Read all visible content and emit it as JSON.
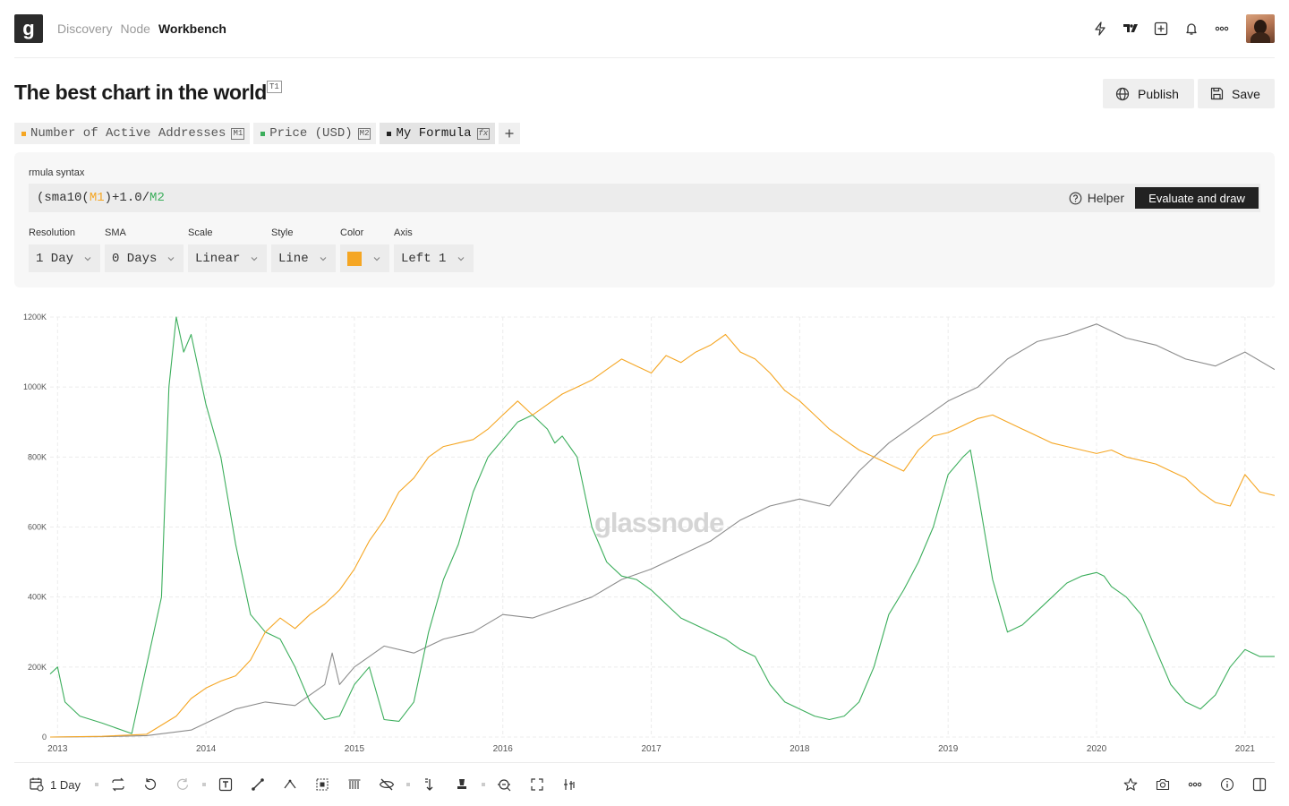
{
  "nav": {
    "logo": "g",
    "links": [
      {
        "label": "Discovery",
        "active": false
      },
      {
        "label": "Node",
        "active": false
      },
      {
        "label": "Workbench",
        "active": true
      }
    ],
    "icons": [
      "lightning-icon",
      "tradingview-icon",
      "add-square-icon",
      "bell-icon",
      "more-icon"
    ]
  },
  "page": {
    "title": "The best chart in the world",
    "title_badge": "T1",
    "publish_label": "Publish",
    "save_label": "Save"
  },
  "tabs": [
    {
      "label": "Number of Active Addresses",
      "code": "M1",
      "color": "#f5a623",
      "active": false
    },
    {
      "label": "Price (USD)",
      "code": "M2",
      "color": "#3cae5c",
      "active": false
    },
    {
      "label": "My Formula",
      "code": "fx",
      "color": "#222222",
      "active": true
    }
  ],
  "formula": {
    "label": "rmula syntax",
    "text_prefix": "(sma10(",
    "m1": "M1",
    "text_mid": ")+1.0/",
    "m2": "M2",
    "helper_label": "Helper",
    "evaluate_label": "Evaluate and draw"
  },
  "controls": {
    "resolution": {
      "label": "Resolution",
      "value": "1 Day"
    },
    "sma": {
      "label": "SMA",
      "value": "0 Days"
    },
    "scale": {
      "label": "Scale",
      "value": "Linear"
    },
    "style": {
      "label": "Style",
      "value": "Line"
    },
    "color": {
      "label": "Color",
      "value": "#f5a623"
    },
    "axis": {
      "label": "Axis",
      "value": "Left 1"
    }
  },
  "watermark": "glassnode",
  "chart_data": {
    "type": "line",
    "yticks": [
      "0",
      "200K",
      "400K",
      "600K",
      "800K",
      "1000K",
      "1200K"
    ],
    "ylim": [
      0,
      1200000
    ],
    "xticks": [
      "2013",
      "2014",
      "2015",
      "2016",
      "2017",
      "2018",
      "2019",
      "2020",
      "2021"
    ],
    "xlim": [
      2012.95,
      2021.2
    ],
    "grid": true,
    "series": [
      {
        "color": "#f5a623",
        "x": [
          2012.95,
          2013.3,
          2013.6,
          2013.8,
          2013.9,
          2014.0,
          2014.1,
          2014.2,
          2014.3,
          2014.4,
          2014.5,
          2014.6,
          2014.7,
          2014.8,
          2014.9,
          2015.0,
          2015.1,
          2015.2,
          2015.3,
          2015.4,
          2015.5,
          2015.6,
          2015.7,
          2015.8,
          2015.9,
          2016.0,
          2016.1,
          2016.2,
          2016.3,
          2016.4,
          2016.5,
          2016.6,
          2016.7,
          2016.8,
          2016.9,
          2017.0,
          2017.1,
          2017.2,
          2017.3,
          2017.4,
          2017.5,
          2017.6,
          2017.7,
          2017.8,
          2017.9,
          2018.0,
          2018.1,
          2018.2,
          2018.3,
          2018.4,
          2018.5,
          2018.6,
          2018.7,
          2018.8,
          2018.9,
          2019.0,
          2019.1,
          2019.2,
          2019.3,
          2019.4,
          2019.5,
          2019.6,
          2019.7,
          2019.8,
          2019.9,
          2020.0,
          2020.1,
          2020.2,
          2020.3,
          2020.4,
          2020.5,
          2020.6,
          2020.7,
          2020.8,
          2020.9,
          2021.0,
          2021.1,
          2021.2
        ],
        "values": [
          0,
          2000,
          8000,
          60000,
          110000,
          140000,
          160000,
          175000,
          220000,
          300000,
          340000,
          310000,
          350000,
          380000,
          420000,
          480000,
          560000,
          620000,
          700000,
          740000,
          800000,
          830000,
          840000,
          850000,
          880000,
          920000,
          960000,
          920000,
          950000,
          980000,
          1000000,
          1020000,
          1050000,
          1080000,
          1060000,
          1040000,
          1090000,
          1070000,
          1100000,
          1120000,
          1150000,
          1100000,
          1080000,
          1040000,
          990000,
          960000,
          920000,
          880000,
          850000,
          820000,
          800000,
          780000,
          760000,
          820000,
          860000,
          870000,
          890000,
          910000,
          920000,
          900000,
          880000,
          860000,
          840000,
          830000,
          820000,
          810000,
          820000,
          800000,
          790000,
          780000,
          760000,
          740000,
          700000,
          670000,
          660000,
          750000,
          700000,
          690000
        ]
      },
      {
        "color": "#3cae5c",
        "x": [
          2012.95,
          2013.0,
          2013.05,
          2013.15,
          2013.3,
          2013.5,
          2013.7,
          2013.75,
          2013.8,
          2013.85,
          2013.9,
          2014.0,
          2014.1,
          2014.2,
          2014.3,
          2014.4,
          2014.5,
          2014.6,
          2014.7,
          2014.8,
          2014.9,
          2015.0,
          2015.1,
          2015.2,
          2015.3,
          2015.4,
          2015.5,
          2015.6,
          2015.7,
          2015.8,
          2015.9,
          2016.0,
          2016.1,
          2016.2,
          2016.3,
          2016.35,
          2016.4,
          2016.5,
          2016.6,
          2016.7,
          2016.8,
          2016.9,
          2017.0,
          2017.1,
          2017.2,
          2017.3,
          2017.4,
          2017.5,
          2017.6,
          2017.7,
          2017.8,
          2017.9,
          2018.0,
          2018.1,
          2018.2,
          2018.3,
          2018.4,
          2018.5,
          2018.6,
          2018.7,
          2018.8,
          2018.9,
          2019.0,
          2019.1,
          2019.15,
          2019.2,
          2019.3,
          2019.4,
          2019.5,
          2019.6,
          2019.7,
          2019.8,
          2019.9,
          2020.0,
          2020.05,
          2020.1,
          2020.2,
          2020.3,
          2020.4,
          2020.5,
          2020.6,
          2020.7,
          2020.8,
          2020.9,
          2021.0,
          2021.1,
          2021.2
        ],
        "values": [
          180000,
          200000,
          100000,
          60000,
          40000,
          10000,
          400000,
          1000000,
          1200000,
          1100000,
          1150000,
          950000,
          800000,
          550000,
          350000,
          300000,
          280000,
          200000,
          100000,
          50000,
          60000,
          150000,
          200000,
          50000,
          45000,
          100000,
          300000,
          450000,
          550000,
          700000,
          800000,
          850000,
          900000,
          920000,
          880000,
          840000,
          860000,
          800000,
          600000,
          500000,
          460000,
          450000,
          420000,
          380000,
          340000,
          320000,
          300000,
          280000,
          250000,
          230000,
          150000,
          100000,
          80000,
          60000,
          50000,
          60000,
          100000,
          200000,
          350000,
          420000,
          500000,
          600000,
          750000,
          800000,
          820000,
          700000,
          450000,
          300000,
          320000,
          360000,
          400000,
          440000,
          460000,
          470000,
          460000,
          430000,
          400000,
          350000,
          250000,
          150000,
          100000,
          80000,
          120000,
          200000,
          250000,
          230000,
          230000
        ]
      },
      {
        "color": "#8c8c8c",
        "x": [
          2012.95,
          2013.3,
          2013.6,
          2013.9,
          2014.0,
          2014.2,
          2014.4,
          2014.6,
          2014.8,
          2014.85,
          2014.9,
          2015.0,
          2015.2,
          2015.4,
          2015.6,
          2015.8,
          2016.0,
          2016.2,
          2016.4,
          2016.6,
          2016.8,
          2017.0,
          2017.2,
          2017.4,
          2017.6,
          2017.8,
          2018.0,
          2018.2,
          2018.4,
          2018.6,
          2018.8,
          2019.0,
          2019.2,
          2019.4,
          2019.6,
          2019.8,
          2020.0,
          2020.2,
          2020.4,
          2020.6,
          2020.8,
          2021.0,
          2021.2
        ],
        "values": [
          0,
          1000,
          4000,
          20000,
          40000,
          80000,
          100000,
          90000,
          150000,
          240000,
          150000,
          200000,
          260000,
          240000,
          280000,
          300000,
          350000,
          340000,
          370000,
          400000,
          450000,
          480000,
          520000,
          560000,
          620000,
          660000,
          680000,
          660000,
          760000,
          840000,
          900000,
          960000,
          1000000,
          1080000,
          1130000,
          1150000,
          1180000,
          1140000,
          1120000,
          1080000,
          1060000,
          1100000,
          1050000
        ]
      }
    ]
  },
  "toolbar": {
    "resolution_label": "1 Day",
    "left_icons": [
      "calendar-icon",
      "repeat-icon",
      "undo-icon",
      "redo-icon",
      "text-tool-icon",
      "line-tool-icon",
      "path-tool-icon",
      "selection-tool-icon",
      "bars-tool-icon",
      "hide-icon",
      "sort-icon",
      "stamp-icon",
      "zoom-icon",
      "fullscreen-icon",
      "adjust-icon"
    ],
    "right_icons": [
      "star-icon",
      "camera-icon",
      "more-icon",
      "info-icon",
      "panel-icon"
    ]
  }
}
